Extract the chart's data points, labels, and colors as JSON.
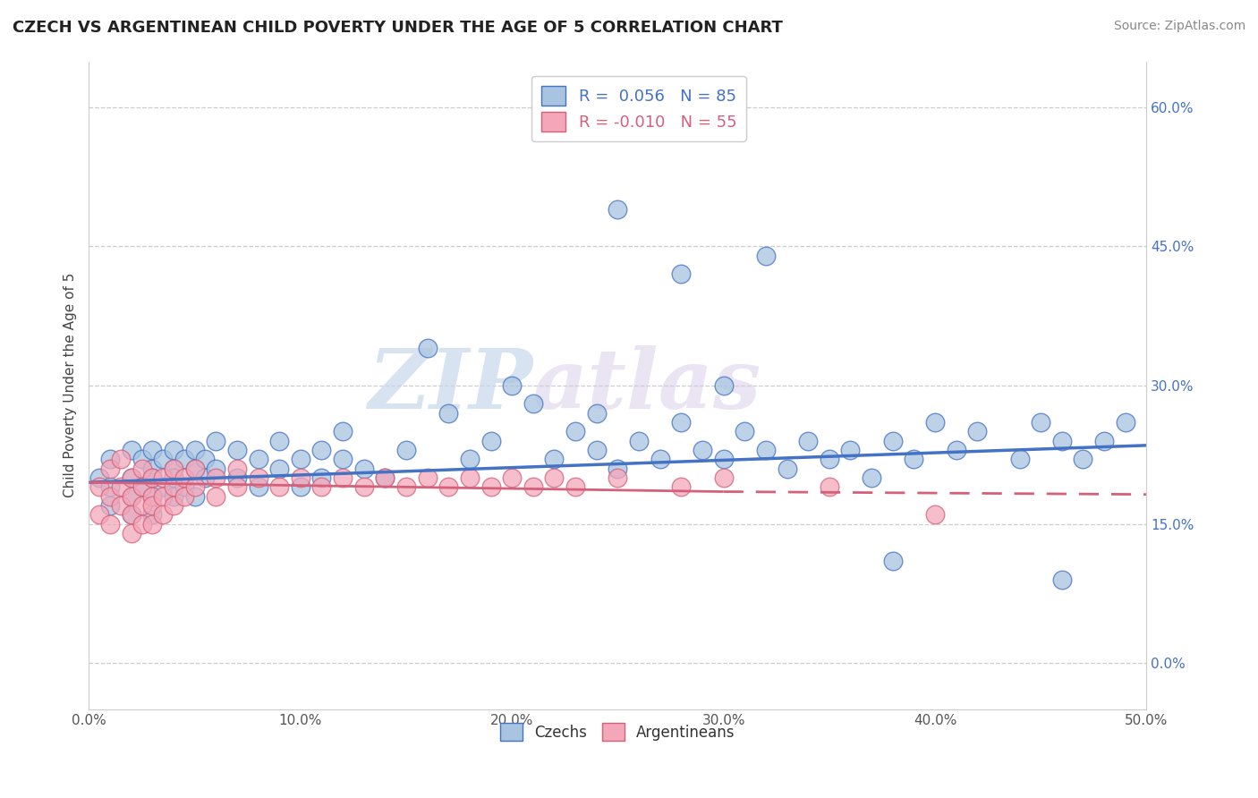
{
  "title": "CZECH VS ARGENTINEAN CHILD POVERTY UNDER THE AGE OF 5 CORRELATION CHART",
  "source": "Source: ZipAtlas.com",
  "ylabel": "Child Poverty Under the Age of 5",
  "xlim": [
    0.0,
    0.5
  ],
  "ylim": [
    -0.05,
    0.65
  ],
  "yticks": [
    0.0,
    0.15,
    0.3,
    0.45,
    0.6
  ],
  "ytick_labels": [
    "0.0%",
    "15.0%",
    "30.0%",
    "45.0%",
    "60.0%"
  ],
  "xticks": [
    0.0,
    0.1,
    0.2,
    0.3,
    0.4,
    0.5
  ],
  "xtick_labels": [
    "0.0%",
    "10.0%",
    "20.0%",
    "30.0%",
    "40.0%",
    "50.0%"
  ],
  "czech_color": "#a8c4e0",
  "czech_edge_color": "#4472c4",
  "argentinean_color": "#f4a7b9",
  "argentinean_edge_color": "#d4607a",
  "czech_R": 0.056,
  "czech_N": 85,
  "argentinean_R": -0.01,
  "argentinean_N": 55,
  "watermark_zip": "ZIP",
  "watermark_atlas": "atlas",
  "background_color": "#ffffff",
  "grid_color": "#cccccc",
  "czech_scatter_x": [
    0.005,
    0.01,
    0.01,
    0.01,
    0.02,
    0.02,
    0.02,
    0.02,
    0.025,
    0.025,
    0.03,
    0.03,
    0.03,
    0.03,
    0.03,
    0.035,
    0.035,
    0.04,
    0.04,
    0.04,
    0.04,
    0.045,
    0.045,
    0.05,
    0.05,
    0.05,
    0.055,
    0.055,
    0.06,
    0.06,
    0.07,
    0.07,
    0.08,
    0.08,
    0.09,
    0.09,
    0.1,
    0.1,
    0.11,
    0.11,
    0.12,
    0.12,
    0.13,
    0.14,
    0.15,
    0.16,
    0.17,
    0.18,
    0.19,
    0.2,
    0.21,
    0.22,
    0.23,
    0.24,
    0.24,
    0.25,
    0.26,
    0.27,
    0.28,
    0.29,
    0.3,
    0.3,
    0.31,
    0.32,
    0.33,
    0.34,
    0.35,
    0.36,
    0.37,
    0.38,
    0.39,
    0.4,
    0.41,
    0.42,
    0.44,
    0.45,
    0.46,
    0.47,
    0.48,
    0.49,
    0.25,
    0.28,
    0.32,
    0.38,
    0.46
  ],
  "czech_scatter_y": [
    0.2,
    0.22,
    0.19,
    0.17,
    0.23,
    0.2,
    0.18,
    0.16,
    0.22,
    0.19,
    0.21,
    0.18,
    0.16,
    0.23,
    0.2,
    0.22,
    0.19,
    0.21,
    0.18,
    0.23,
    0.2,
    0.22,
    0.19,
    0.23,
    0.21,
    0.18,
    0.22,
    0.2,
    0.24,
    0.21,
    0.23,
    0.2,
    0.22,
    0.19,
    0.24,
    0.21,
    0.22,
    0.19,
    0.23,
    0.2,
    0.25,
    0.22,
    0.21,
    0.2,
    0.23,
    0.34,
    0.27,
    0.22,
    0.24,
    0.3,
    0.28,
    0.22,
    0.25,
    0.27,
    0.23,
    0.21,
    0.24,
    0.22,
    0.26,
    0.23,
    0.3,
    0.22,
    0.25,
    0.23,
    0.21,
    0.24,
    0.22,
    0.23,
    0.2,
    0.24,
    0.22,
    0.26,
    0.23,
    0.25,
    0.22,
    0.26,
    0.24,
    0.22,
    0.24,
    0.26,
    0.49,
    0.42,
    0.44,
    0.11,
    0.09
  ],
  "argentinean_scatter_x": [
    0.005,
    0.005,
    0.01,
    0.01,
    0.01,
    0.015,
    0.015,
    0.015,
    0.02,
    0.02,
    0.02,
    0.02,
    0.025,
    0.025,
    0.025,
    0.025,
    0.03,
    0.03,
    0.03,
    0.03,
    0.035,
    0.035,
    0.035,
    0.04,
    0.04,
    0.04,
    0.045,
    0.045,
    0.05,
    0.05,
    0.06,
    0.06,
    0.07,
    0.07,
    0.08,
    0.09,
    0.1,
    0.11,
    0.12,
    0.13,
    0.14,
    0.15,
    0.16,
    0.17,
    0.18,
    0.19,
    0.2,
    0.21,
    0.22,
    0.23,
    0.25,
    0.28,
    0.3,
    0.35,
    0.4
  ],
  "argentinean_scatter_y": [
    0.19,
    0.16,
    0.21,
    0.18,
    0.15,
    0.22,
    0.19,
    0.17,
    0.2,
    0.18,
    0.16,
    0.14,
    0.21,
    0.19,
    0.17,
    0.15,
    0.2,
    0.18,
    0.17,
    0.15,
    0.2,
    0.18,
    0.16,
    0.21,
    0.19,
    0.17,
    0.2,
    0.18,
    0.21,
    0.19,
    0.2,
    0.18,
    0.21,
    0.19,
    0.2,
    0.19,
    0.2,
    0.19,
    0.2,
    0.19,
    0.2,
    0.19,
    0.2,
    0.19,
    0.2,
    0.19,
    0.2,
    0.19,
    0.2,
    0.19,
    0.2,
    0.19,
    0.2,
    0.19,
    0.16
  ],
  "czech_line_x0": 0.0,
  "czech_line_x1": 0.5,
  "czech_line_y0": 0.195,
  "czech_line_y1": 0.235,
  "arg_line_x0": 0.0,
  "arg_line_x1": 0.3,
  "arg_line_y0": 0.195,
  "arg_line_y1": 0.185
}
